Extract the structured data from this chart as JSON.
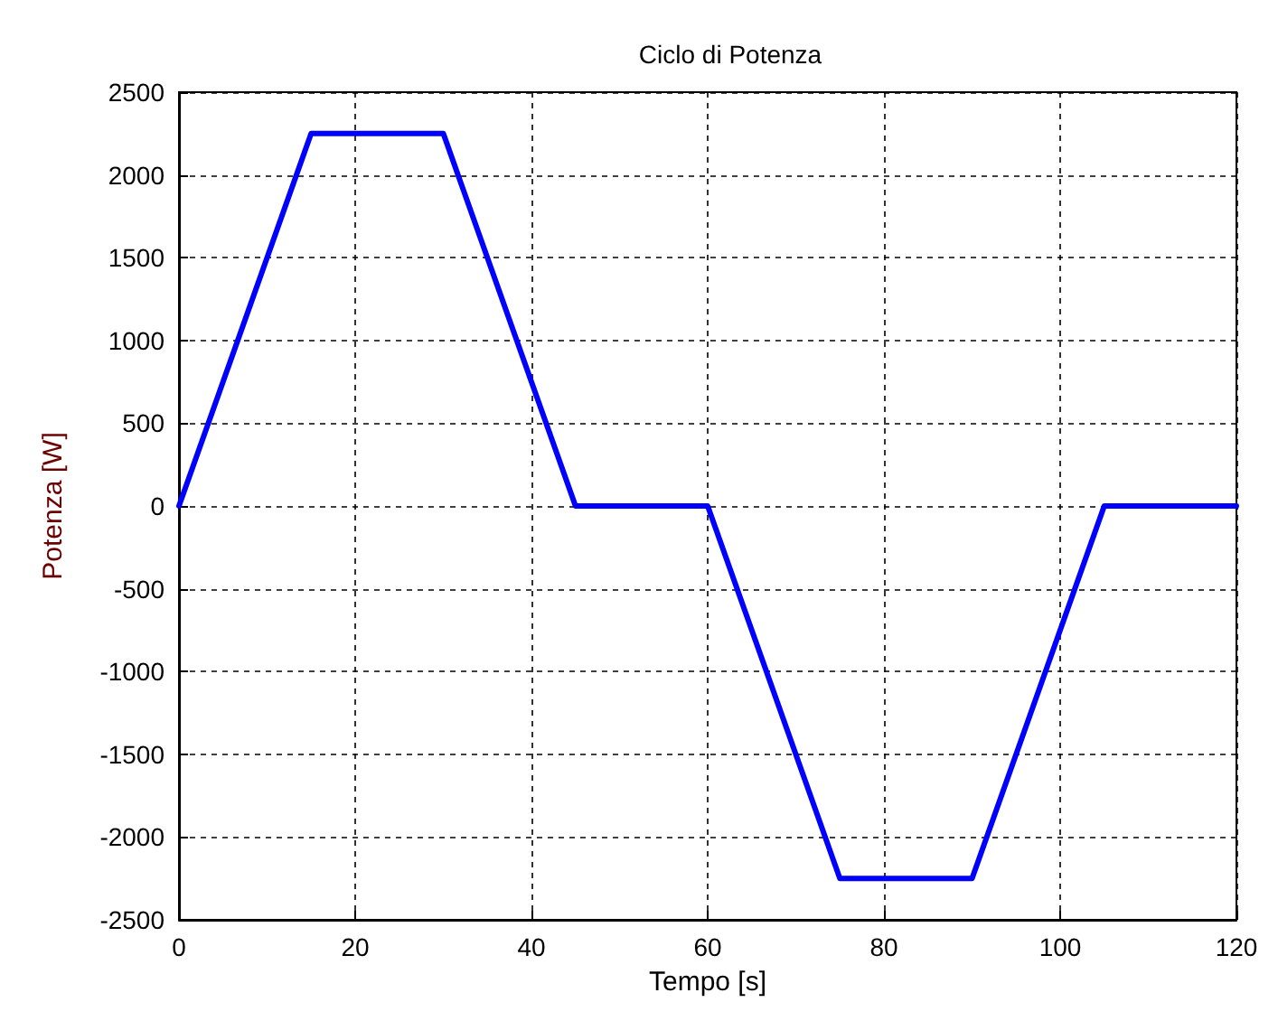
{
  "chart_data": {
    "type": "line",
    "title": "Ciclo di Potenza",
    "xlabel": "Tempo [s]",
    "ylabel": "Potenza [W]",
    "x": [
      0,
      15,
      30,
      45,
      60,
      75,
      90,
      105,
      120
    ],
    "series": [
      {
        "color": "#0000ff",
        "values": [
          0,
          2250,
          2250,
          0,
          0,
          -2250,
          -2250,
          0,
          0
        ]
      }
    ],
    "xlim": [
      0,
      120
    ],
    "xticks": [
      0,
      20,
      40,
      60,
      80,
      100,
      120
    ],
    "ylim": [
      -2500,
      2500
    ],
    "yticks": [
      -2500,
      -2000,
      -1500,
      -1000,
      -500,
      0,
      500,
      1000,
      1500,
      2000,
      2500
    ],
    "grid": true,
    "marker": "none",
    "line_style": "solid"
  }
}
